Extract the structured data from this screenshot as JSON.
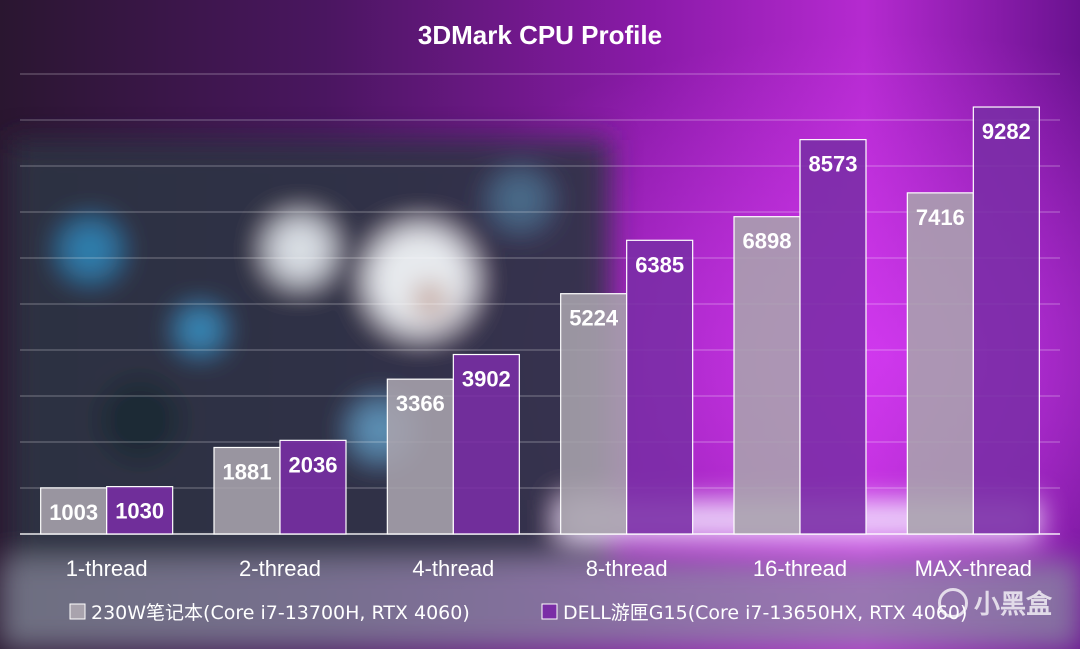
{
  "chart_data": {
    "type": "bar",
    "title": "3DMark CPU Profile",
    "categories": [
      "1-thread",
      "2-thread",
      "4-thread",
      "8-thread",
      "16-thread",
      "MAX-thread"
    ],
    "series": [
      {
        "name": "230W笔记本(Core i7-13700H, RTX 4060)",
        "values": [
          1003,
          1881,
          3366,
          5224,
          6898,
          7416
        ],
        "color": "#a9a3ad"
      },
      {
        "name": "DELL游匣G15(Core i7-13650HX, RTX 4060)",
        "values": [
          1030,
          2036,
          3902,
          6385,
          8573,
          9282
        ],
        "color": "#7a2da6"
      }
    ],
    "ylim": [
      0,
      10000
    ],
    "grid": true,
    "legend": "bottom",
    "xlabel": "",
    "ylabel": ""
  },
  "watermark": "小黑盒"
}
